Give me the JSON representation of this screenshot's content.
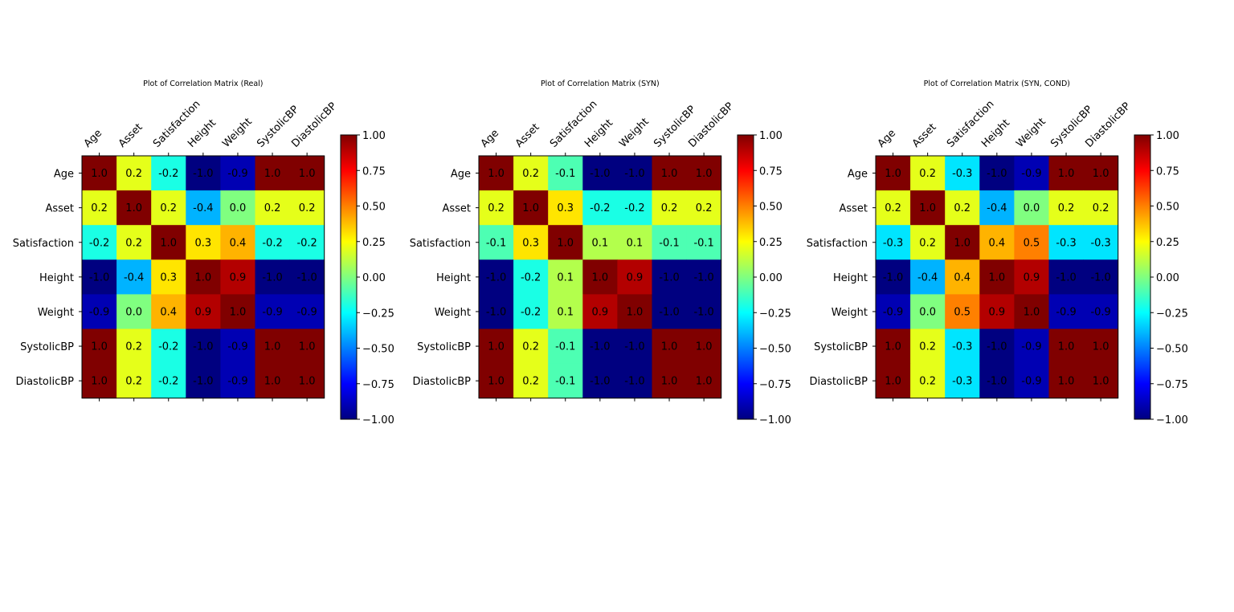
{
  "chart_data": [
    {
      "type": "heatmap",
      "title": "Plot of Correlation Matrix (Real)",
      "labels": [
        "Age",
        "Asset",
        "Satisfaction",
        "Height",
        "Weight",
        "SystolicBP",
        "DiastolicBP"
      ],
      "values": [
        [
          1.0,
          0.2,
          -0.2,
          -1.0,
          -0.9,
          1.0,
          1.0
        ],
        [
          0.2,
          1.0,
          0.2,
          -0.4,
          0.0,
          0.2,
          0.2
        ],
        [
          -0.2,
          0.2,
          1.0,
          0.3,
          0.4,
          -0.2,
          -0.2
        ],
        [
          -1.0,
          -0.4,
          0.3,
          1.0,
          0.9,
          -1.0,
          -1.0
        ],
        [
          -0.9,
          0.0,
          0.4,
          0.9,
          1.0,
          -0.9,
          -0.9
        ],
        [
          1.0,
          0.2,
          -0.2,
          -1.0,
          -0.9,
          1.0,
          1.0
        ],
        [
          1.0,
          0.2,
          -0.2,
          -1.0,
          -0.9,
          1.0,
          1.0
        ]
      ],
      "colormap": "jet",
      "vmin": -1.0,
      "vmax": 1.0,
      "colorbar_ticks": [
        "1.00",
        "0.75",
        "0.50",
        "0.25",
        "0.00",
        "−0.25",
        "−0.50",
        "−0.75",
        "−1.00"
      ]
    },
    {
      "type": "heatmap",
      "title": "Plot of Correlation Matrix (SYN)",
      "labels": [
        "Age",
        "Asset",
        "Satisfaction",
        "Height",
        "Weight",
        "SystolicBP",
        "DiastolicBP"
      ],
      "values": [
        [
          1.0,
          0.2,
          -0.1,
          -1.0,
          -1.0,
          1.0,
          1.0
        ],
        [
          0.2,
          1.0,
          0.3,
          -0.2,
          -0.2,
          0.2,
          0.2
        ],
        [
          -0.1,
          0.3,
          1.0,
          0.1,
          0.1,
          -0.1,
          -0.1
        ],
        [
          -1.0,
          -0.2,
          0.1,
          1.0,
          0.9,
          -1.0,
          -1.0
        ],
        [
          -1.0,
          -0.2,
          0.1,
          0.9,
          1.0,
          -1.0,
          -1.0
        ],
        [
          1.0,
          0.2,
          -0.1,
          -1.0,
          -1.0,
          1.0,
          1.0
        ],
        [
          1.0,
          0.2,
          -0.1,
          -1.0,
          -1.0,
          1.0,
          1.0
        ]
      ],
      "colormap": "jet",
      "vmin": -1.0,
      "vmax": 1.0,
      "colorbar_ticks": [
        "1.00",
        "0.75",
        "0.50",
        "0.25",
        "0.00",
        "−0.25",
        "−0.50",
        "−0.75",
        "−1.00"
      ]
    },
    {
      "type": "heatmap",
      "title": "Plot of Correlation Matrix (SYN, COND)",
      "labels": [
        "Age",
        "Asset",
        "Satisfaction",
        "Height",
        "Weight",
        "SystolicBP",
        "DiastolicBP"
      ],
      "values": [
        [
          1.0,
          0.2,
          -0.3,
          -1.0,
          -0.9,
          1.0,
          1.0
        ],
        [
          0.2,
          1.0,
          0.2,
          -0.4,
          0.0,
          0.2,
          0.2
        ],
        [
          -0.3,
          0.2,
          1.0,
          0.4,
          0.5,
          -0.3,
          -0.3
        ],
        [
          -1.0,
          -0.4,
          0.4,
          1.0,
          0.9,
          -1.0,
          -1.0
        ],
        [
          -0.9,
          0.0,
          0.5,
          0.9,
          1.0,
          -0.9,
          -0.9
        ],
        [
          1.0,
          0.2,
          -0.3,
          -1.0,
          -0.9,
          1.0,
          1.0
        ],
        [
          1.0,
          0.2,
          -0.3,
          -1.0,
          -0.9,
          1.0,
          1.0
        ]
      ],
      "colormap": "jet",
      "vmin": -1.0,
      "vmax": 1.0,
      "colorbar_ticks": [
        "1.00",
        "0.75",
        "0.50",
        "0.25",
        "0.00",
        "−0.25",
        "−0.50",
        "−0.75",
        "−1.00"
      ]
    }
  ]
}
